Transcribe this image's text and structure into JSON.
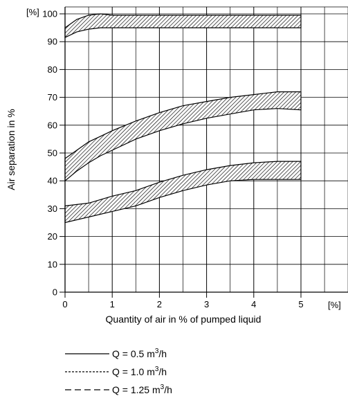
{
  "chart_data": {
    "type": "area",
    "xlabel": "Quantity of air in % of pumped liquid",
    "ylabel": "Air separation in %",
    "x_unit": "[%]",
    "y_unit": "[%]",
    "xlim": [
      0,
      5
    ],
    "ylim": [
      0,
      100
    ],
    "x_ticks": [
      0,
      1,
      2,
      3,
      4,
      5
    ],
    "y_ticks": [
      0,
      10,
      20,
      30,
      40,
      50,
      60,
      70,
      80,
      90,
      100
    ],
    "grid": true,
    "bands": [
      {
        "x": [
          0,
          0.25,
          0.5,
          0.75,
          1,
          1.5,
          2,
          2.5,
          3,
          3.5,
          4,
          4.5,
          5
        ],
        "upper": [
          95,
          98,
          99.5,
          100,
          99.5,
          99.5,
          99.5,
          99.5,
          99.5,
          99.5,
          99.5,
          99.5,
          99.5
        ],
        "lower": [
          91.5,
          93.5,
          94.5,
          95,
          95,
          95,
          95,
          95,
          95,
          95,
          95,
          95,
          95
        ]
      },
      {
        "x": [
          0,
          0.25,
          0.5,
          0.75,
          1,
          1.5,
          2,
          2.5,
          3,
          3.5,
          4,
          4.5,
          5
        ],
        "upper": [
          48,
          51,
          54,
          56,
          58,
          61.5,
          64.5,
          67,
          68.5,
          70,
          71,
          72,
          72
        ],
        "lower": [
          40,
          43.5,
          46.5,
          49,
          51,
          55,
          58,
          60.5,
          62.5,
          64,
          65.5,
          66,
          65.5
        ]
      },
      {
        "x": [
          0,
          0.5,
          1,
          1.5,
          2,
          2.5,
          3,
          3.5,
          4,
          4.5,
          5
        ],
        "upper": [
          31,
          32,
          34.5,
          36.5,
          39.5,
          42,
          44,
          45.5,
          46.5,
          47,
          47
        ],
        "lower": [
          25,
          27,
          29,
          31,
          34,
          36.5,
          38.5,
          40,
          40.5,
          40.5,
          40.5
        ]
      }
    ],
    "legend": [
      {
        "style": "solid",
        "label": "Q = 0.5 m",
        "sup": "3",
        "suffix": "/h"
      },
      {
        "style": "dotted",
        "label": "Q = 1.0 m",
        "sup": "3",
        "suffix": "/h"
      },
      {
        "style": "dashed",
        "label": "Q = 1.25 m",
        "sup": "3",
        "suffix": "/h"
      }
    ]
  }
}
